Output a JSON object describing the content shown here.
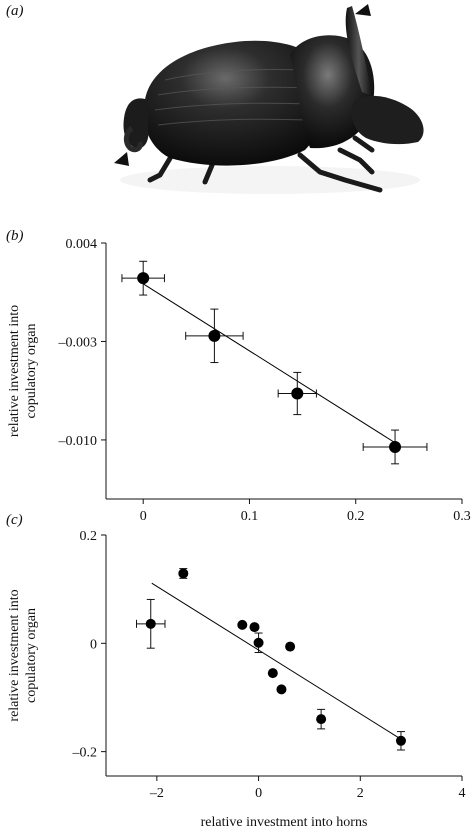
{
  "panels": {
    "a": "(a)",
    "b": "(b)",
    "c": "(c)"
  },
  "chart_data": [
    {
      "type": "scatter",
      "panel": "(b)",
      "title": "",
      "xlabel": "",
      "ylabel": "relative investment into copulatory organ",
      "xlim": [
        -0.035,
        0.3
      ],
      "ylim": [
        -0.0142,
        0.004
      ],
      "xticks": [
        0,
        0.1,
        0.2,
        0.3
      ],
      "xtick_labels": [
        "0",
        "0.1",
        "0.2",
        "0.3"
      ],
      "yticks": [
        0.004,
        -0.003,
        -0.01
      ],
      "ytick_labels": [
        "0.004",
        "–0.003",
        "–0.010"
      ],
      "points": [
        {
          "x": 0.0,
          "y": 0.0015,
          "xerr": 0.02,
          "yerr": 0.0012
        },
        {
          "x": 0.067,
          "y": -0.0026,
          "xerr": 0.027,
          "yerr": 0.0019
        },
        {
          "x": 0.145,
          "y": -0.0067,
          "xerr": 0.018,
          "yerr": 0.0015
        },
        {
          "x": 0.237,
          "y": -0.0105,
          "xerr": 0.03,
          "yerr": 0.0012
        }
      ],
      "fit_line": {
        "x": [
          0.0,
          0.237
        ],
        "y": [
          0.0011,
          -0.0102
        ]
      },
      "grid": false,
      "legend": "none",
      "color": "#000000"
    },
    {
      "type": "scatter",
      "panel": "(c)",
      "title": "",
      "xlabel": "relative investment into horns",
      "ylabel": "relative investment into copulatory organ",
      "xlim": [
        -3.0,
        4.0
      ],
      "ylim": [
        -0.245,
        0.2
      ],
      "xticks": [
        -2,
        0,
        2,
        4
      ],
      "xtick_labels": [
        "–2",
        "0",
        "2",
        "4"
      ],
      "yticks": [
        0.2,
        0,
        -0.2
      ],
      "ytick_labels": [
        "0.2",
        "0",
        "–0.2"
      ],
      "points": [
        {
          "x": -2.12,
          "y": 0.036,
          "xerr": 0.28,
          "yerr": 0.045
        },
        {
          "x": -1.48,
          "y": 0.129,
          "xerr": 0,
          "yerr": 0.009
        },
        {
          "x": -0.32,
          "y": 0.034,
          "xerr": 0,
          "yerr": 0
        },
        {
          "x": -0.08,
          "y": 0.03,
          "xerr": 0,
          "yerr": 0
        },
        {
          "x": 0.0,
          "y": 0.001,
          "xerr": 0,
          "yerr": 0.018
        },
        {
          "x": 0.28,
          "y": -0.055,
          "xerr": 0,
          "yerr": 0
        },
        {
          "x": 0.45,
          "y": -0.085,
          "xerr": 0,
          "yerr": 0
        },
        {
          "x": 0.62,
          "y": -0.006,
          "xerr": 0,
          "yerr": 0
        },
        {
          "x": 1.23,
          "y": -0.14,
          "xerr": 0,
          "yerr": 0.018
        },
        {
          "x": 2.8,
          "y": -0.18,
          "xerr": 0,
          "yerr": 0.017
        }
      ],
      "fit_line": {
        "x": [
          -2.1,
          2.8
        ],
        "y": [
          0.111,
          -0.177
        ]
      },
      "grid": false,
      "legend": "none",
      "color": "#000000"
    }
  ]
}
